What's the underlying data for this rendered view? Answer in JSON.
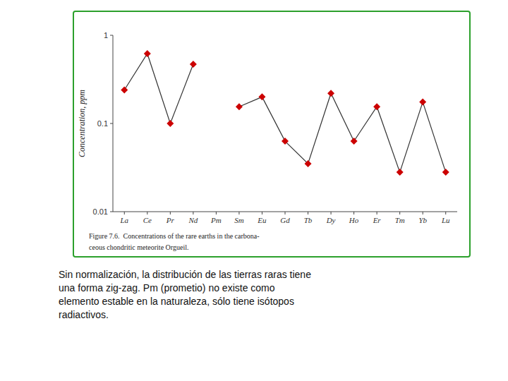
{
  "chart_data": {
    "type": "line",
    "categories": [
      "La",
      "Ce",
      "Pr",
      "Nd",
      "Pm",
      "Sm",
      "Eu",
      "Gd",
      "Tb",
      "Dy",
      "Ho",
      "Er",
      "Tm",
      "Yb",
      "Lu"
    ],
    "values": [
      0.24,
      0.62,
      0.1,
      0.47,
      null,
      0.155,
      0.2,
      0.063,
      0.035,
      0.22,
      0.063,
      0.155,
      0.028,
      0.175,
      0.028
    ],
    "color": "#cc0000",
    "marker": "diamond",
    "log": "y",
    "ylabel": "Concentration, ppm",
    "ylim": [
      0.01,
      1
    ],
    "yticks": [
      0.01,
      0.1,
      1
    ],
    "grid": false,
    "annotations": [
      "Figure 7.6.  Concentrations of the rare earths in the carbona-",
      "ceous chondritic meteorite Orgueil.",
      "Sin normalización, la distribución de las tierras raras tiene\nuna forma zig-zag. Pm (prometio) no existe como\nelemento estable en la naturaleza, sólo tiene isótopos\nradiactivos."
    ]
  }
}
